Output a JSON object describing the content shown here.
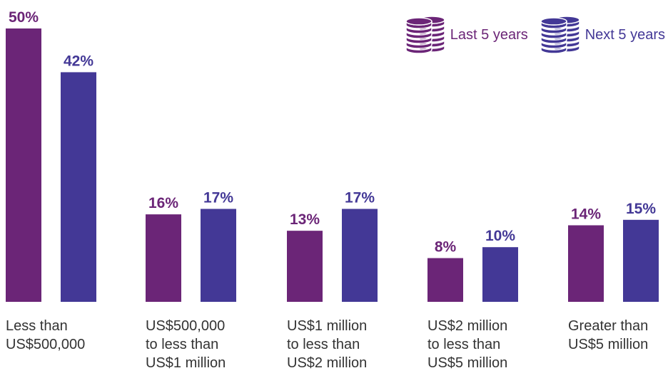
{
  "chart_data": {
    "type": "bar",
    "categories": [
      [
        "Less than",
        "US$500,000"
      ],
      [
        "US$500,000",
        "to less than",
        "US$1 million"
      ],
      [
        "US$1 million",
        "to less than",
        "US$2 million"
      ],
      [
        "US$2 million",
        "to less than",
        "US$5 million"
      ],
      [
        "Greater than",
        "US$5 million"
      ]
    ],
    "series": [
      {
        "name": "Last 5 years",
        "values": [
          50,
          16,
          13,
          8,
          14
        ],
        "labels": [
          "50%",
          "16%",
          "13%",
          "8%",
          "14%"
        ],
        "color": "#6b2577"
      },
      {
        "name": "Next 5 years",
        "values": [
          42,
          17,
          17,
          10,
          15
        ],
        "labels": [
          "42%",
          "17%",
          "17%",
          "10%",
          "15%"
        ],
        "color": "#433896"
      }
    ],
    "ylim": [
      0,
      50
    ],
    "grid": false,
    "legend_position": "top-right"
  },
  "legend_icon": "coin-stack-icon"
}
